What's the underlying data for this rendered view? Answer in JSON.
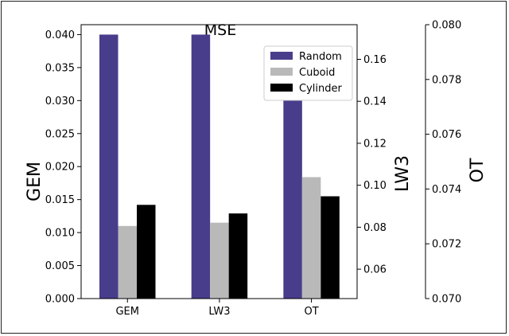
{
  "chart_data": {
    "type": "bar",
    "title": "MSE",
    "categories": [
      "GEM",
      "LW3",
      "OT"
    ],
    "series": [
      {
        "name": "Random",
        "values": [
          0.04,
          0.04,
          0.03
        ],
        "color": "#483d8b"
      },
      {
        "name": "Cuboid",
        "values": [
          0.011,
          0.0115,
          0.0184
        ],
        "color": "#b9b9b9"
      },
      {
        "name": "Cylinder",
        "values": [
          0.0142,
          0.0129,
          0.0155
        ],
        "color": "#000000"
      }
    ],
    "axes": {
      "left": {
        "label": "GEM",
        "ylim": [
          0,
          0.0415
        ],
        "ticks": [
          "0.000",
          "0.005",
          "0.010",
          "0.015",
          "0.020",
          "0.025",
          "0.030",
          "0.035",
          "0.040"
        ]
      },
      "right1": {
        "label": "LW3",
        "ylim": [
          0.046,
          0.1765
        ],
        "ticks": [
          "0.06",
          "0.08",
          "0.10",
          "0.12",
          "0.14",
          "0.16"
        ]
      },
      "right2": {
        "label": "OT",
        "ylim": [
          0.07,
          0.08
        ],
        "ticks": [
          "0.070",
          "0.072",
          "0.074",
          "0.076",
          "0.078",
          "0.080"
        ]
      }
    },
    "legend": "top-right",
    "grid": false
  }
}
